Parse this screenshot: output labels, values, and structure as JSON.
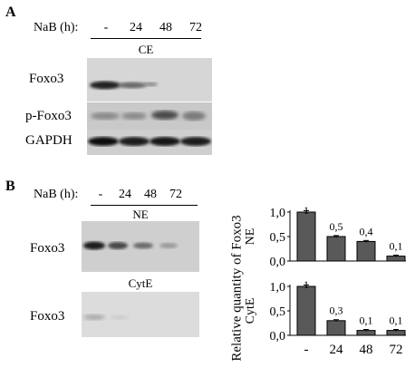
{
  "panel_a": {
    "letter": "A",
    "treatment_label": "NaB (h):",
    "lanes": [
      "-",
      "24",
      "48",
      "72"
    ],
    "fraction": "CE",
    "blots": [
      {
        "label": "Foxo3"
      },
      {
        "label": "p-Foxo3"
      },
      {
        "label": "GAPDH"
      }
    ]
  },
  "panel_b": {
    "letter": "B",
    "treatment_label": "NaB (h):",
    "lanes": [
      "-",
      "24",
      "48",
      "72"
    ],
    "blots": [
      {
        "fraction": "NE",
        "label": "Foxo3"
      },
      {
        "fraction": "CytE",
        "label": "Foxo3"
      }
    ]
  },
  "chart_data": [
    {
      "type": "bar",
      "categories": [
        "-",
        "24",
        "48",
        "72"
      ],
      "values": [
        1.0,
        0.5,
        0.4,
        0.1
      ],
      "data_labels": [
        "1",
        "0,5",
        "0,4",
        "0,1"
      ],
      "error": [
        0.03,
        0.02,
        0.02,
        0.02
      ],
      "ylabel": "NE",
      "ylim": [
        0,
        1.0
      ],
      "yticks": [
        "0,0",
        "0,5",
        "1,0"
      ],
      "bar_color": "#595959"
    },
    {
      "type": "bar",
      "categories": [
        "-",
        "24",
        "48",
        "72"
      ],
      "values": [
        1.0,
        0.3,
        0.1,
        0.1
      ],
      "data_labels": [
        "1",
        "0,3",
        "0,1",
        "0,1"
      ],
      "error": [
        0.03,
        0.02,
        0.02,
        0.02
      ],
      "ylabel": "CytE",
      "ylim": [
        0,
        1.0
      ],
      "yticks": [
        "0,0",
        "0,5",
        "1,0"
      ],
      "bar_color": "#595959"
    }
  ],
  "shared_ylabel": "Relative quantity of Foxo3"
}
